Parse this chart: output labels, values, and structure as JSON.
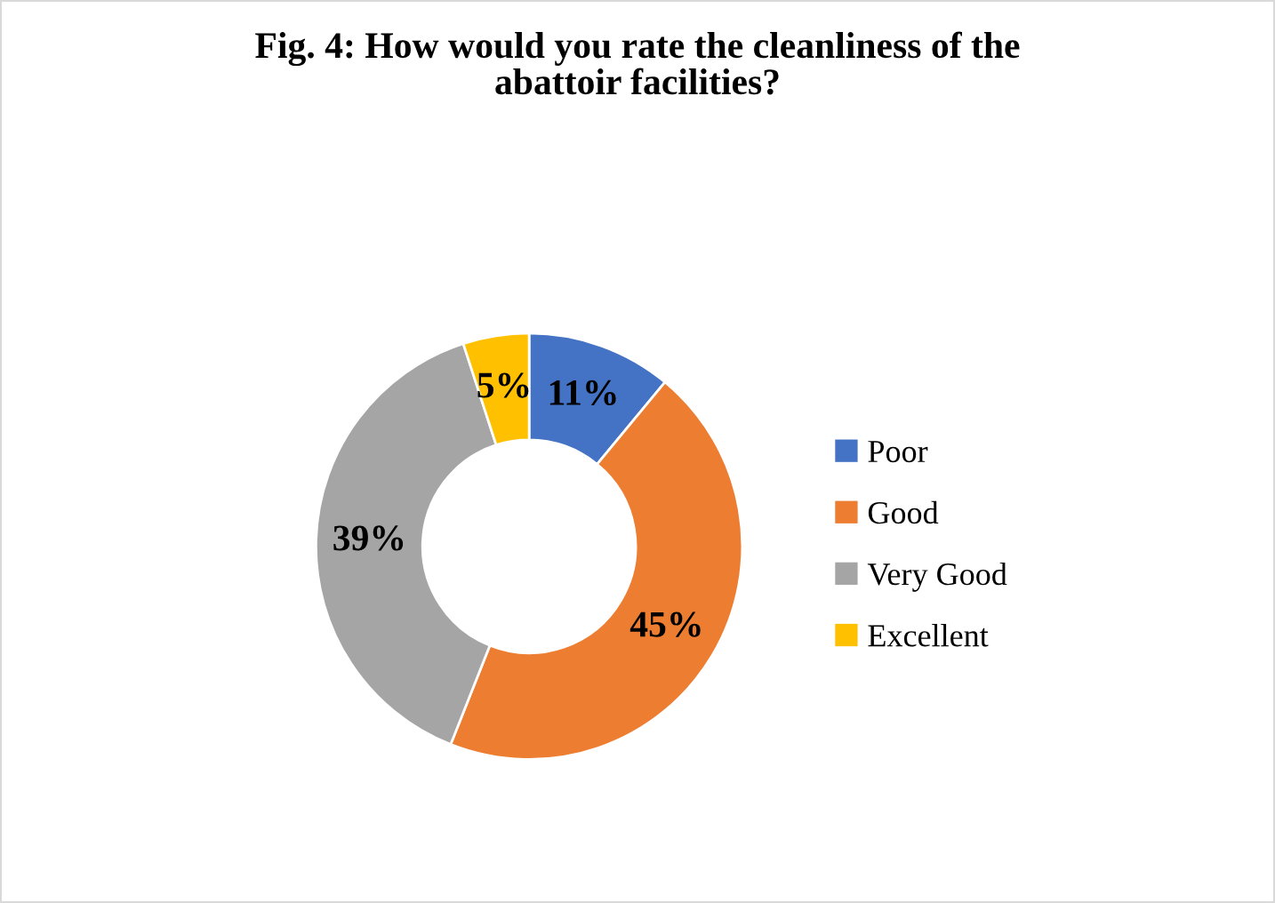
{
  "chart_data": {
    "type": "donut",
    "title": "Fig. 4: How would you rate the cleanliness of the\nabattoir facilities?",
    "categories": [
      "Poor",
      "Good",
      "Very Good",
      "Excellent"
    ],
    "values": [
      11,
      45,
      39,
      5
    ],
    "colors": [
      "#4472c4",
      "#ed7d31",
      "#a5a5a5",
      "#ffc000"
    ],
    "value_labels": [
      "11%",
      "45%",
      "39%",
      "5%"
    ],
    "legend": "right"
  }
}
